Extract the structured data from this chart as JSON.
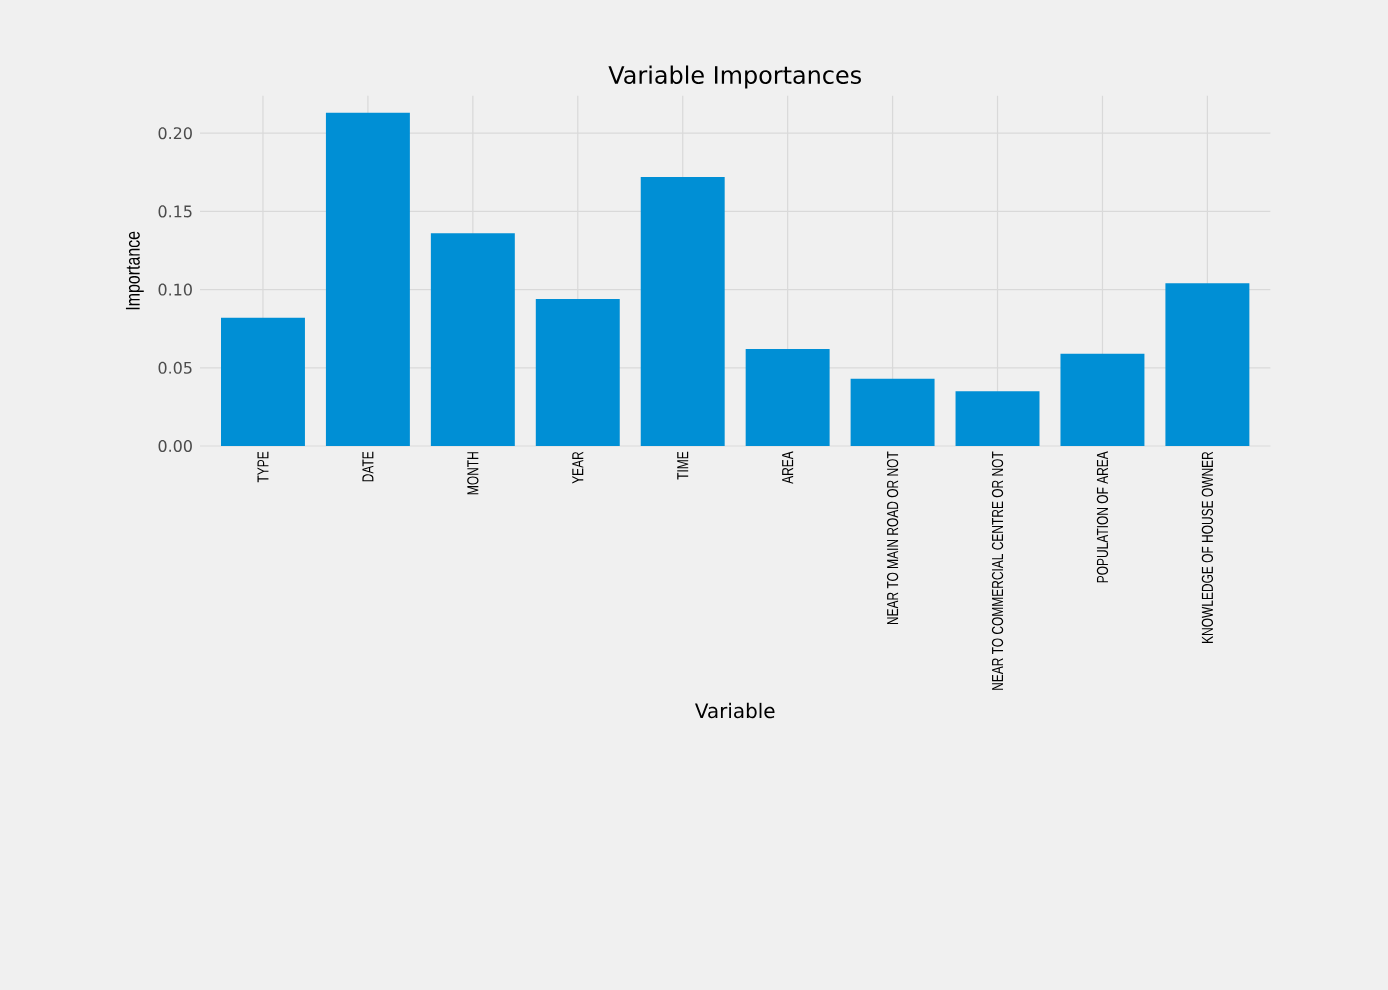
{
  "chart_data": {
    "type": "bar",
    "title": "Variable Importances",
    "xlabel": "Variable",
    "ylabel": "Importance",
    "categories": [
      "TYPE",
      "DATE",
      "MONTH",
      "YEAR",
      "TIME",
      "AREA",
      "NEAR TO MAIN ROAD OR NOT",
      "NEAR TO COMMERCIAL CENTRE OR NOT",
      "POPULATION OF AREA",
      "KNOWLEDGE OF HOUSE OWNER"
    ],
    "values": [
      0.082,
      0.213,
      0.136,
      0.094,
      0.172,
      0.062,
      0.043,
      0.035,
      0.059,
      0.104
    ],
    "color": "#008fd5",
    "ylim": [
      0,
      0.224
    ],
    "yticks": [
      {
        "value": 0,
        "label": "0.00"
      },
      {
        "value": 0.05,
        "label": "0.05"
      },
      {
        "value": 0.1,
        "label": "0.10"
      },
      {
        "value": 0.15,
        "label": "0.15"
      },
      {
        "value": 0.2,
        "label": "0.20"
      }
    ],
    "grid": true
  }
}
